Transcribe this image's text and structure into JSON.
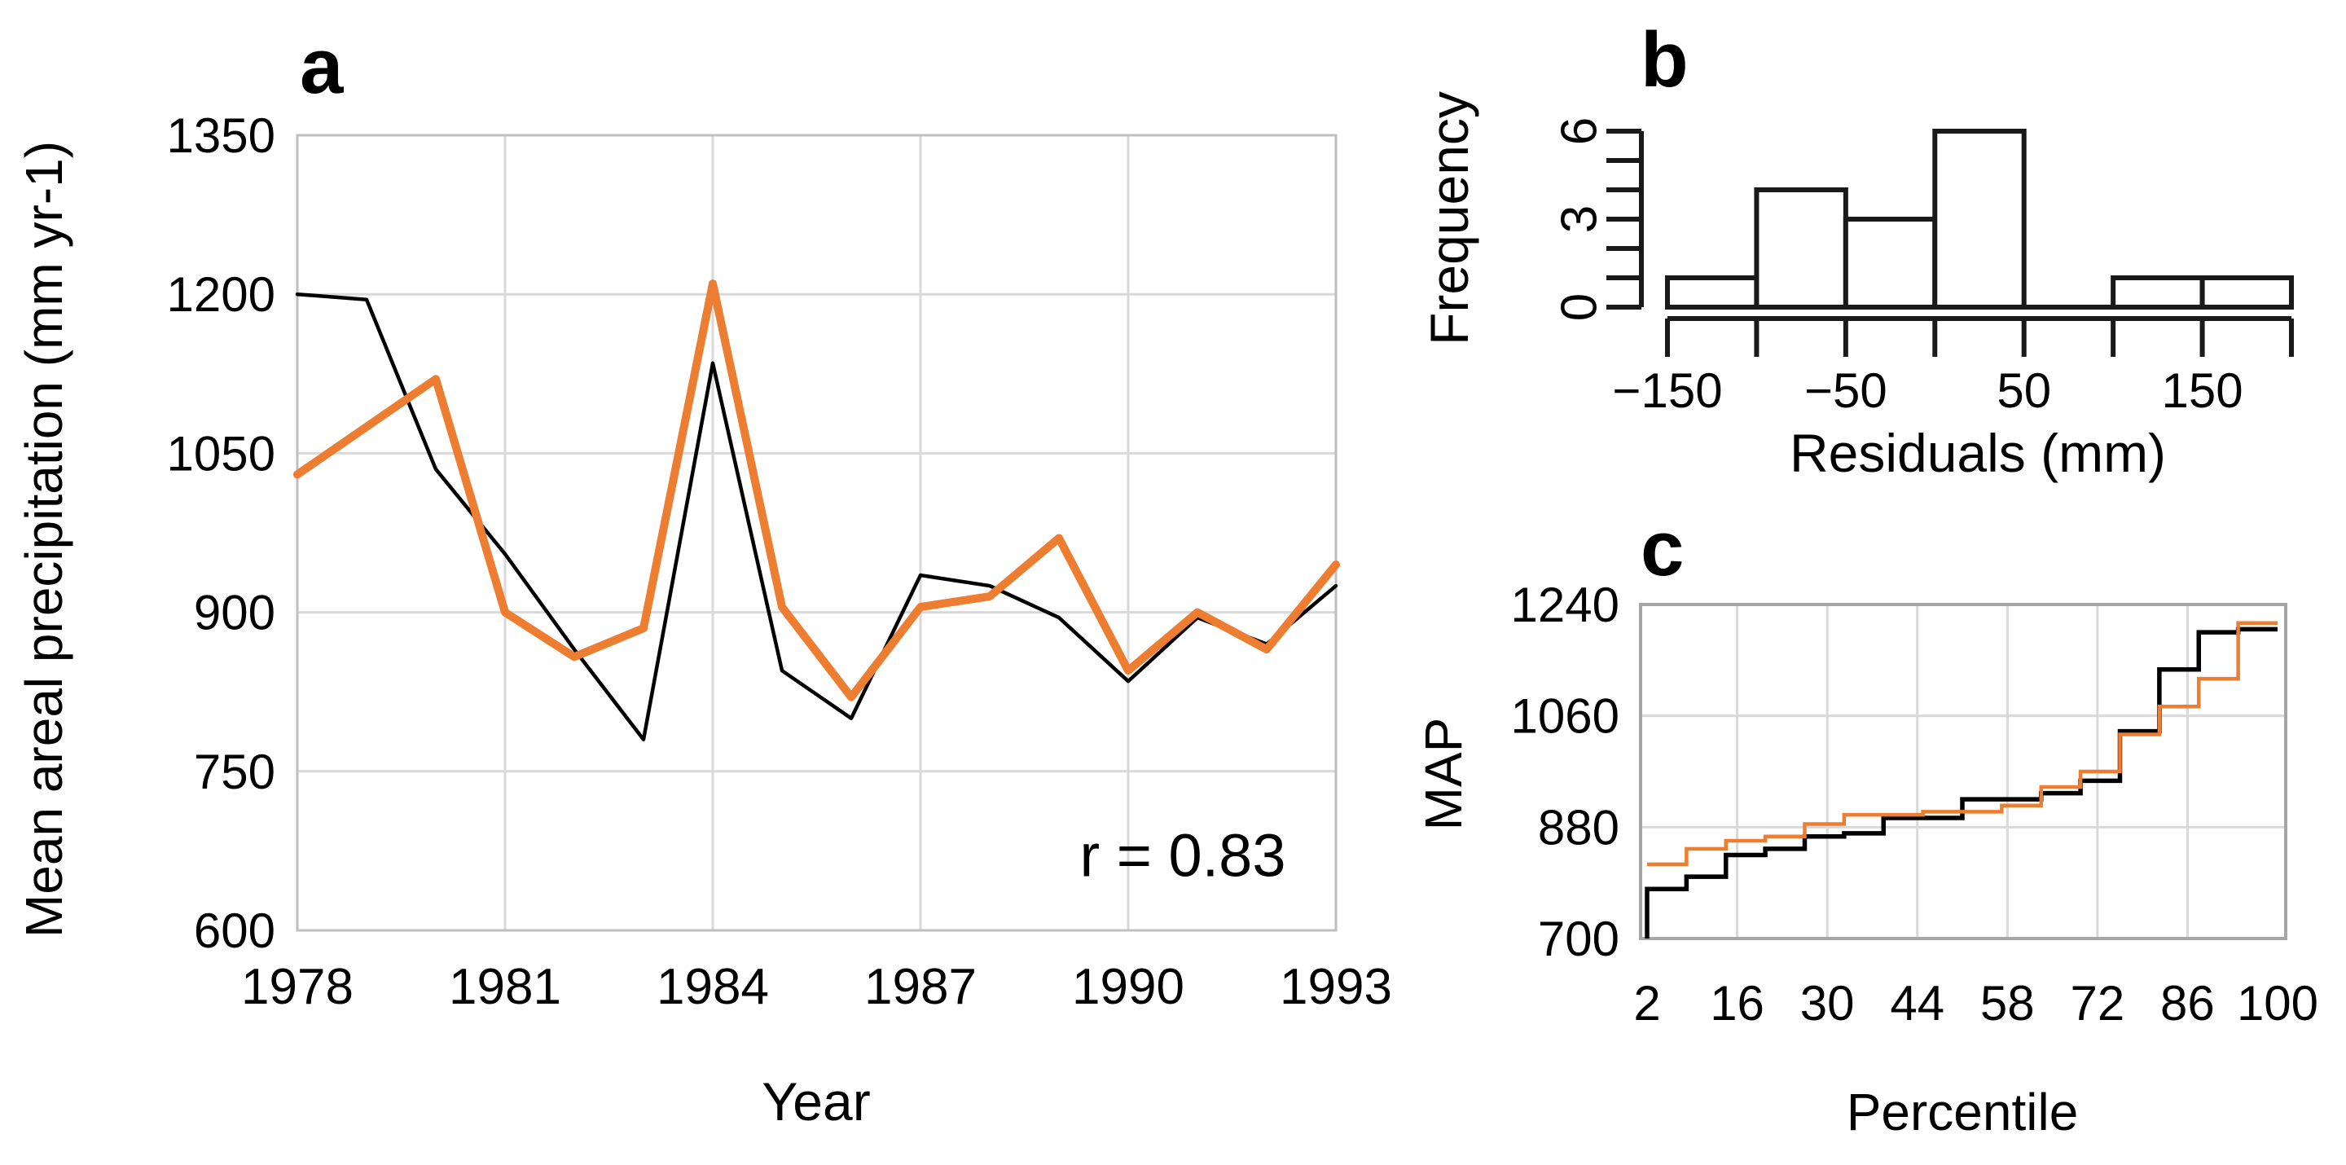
{
  "panels": {
    "a": {
      "letter": "a",
      "x_title": "Year",
      "y_title": "Mean areal precipitation (mm yr-1)",
      "annotation": "r = 0.83"
    },
    "b": {
      "letter": "b",
      "x_title": "Residuals (mm)",
      "y_title": "Frequency"
    },
    "c": {
      "letter": "c",
      "x_title": "Percentile",
      "y_title": "MAP"
    }
  },
  "colors": {
    "line_black": "#000000",
    "line_orange": "#ED7D31",
    "gridline": "#D9D9D9",
    "panel_border": "#BFBFBF",
    "panel_c_border": "#A6A6A6",
    "histogram_stroke": "#1A1A1A",
    "background": "#FFFFFF"
  },
  "chart_data": [
    {
      "id": "a",
      "type": "line",
      "title": "",
      "xlabel": "Year",
      "ylabel": "Mean areal precipitation (mm yr-1)",
      "annotation": "r = 0.83",
      "grid": true,
      "legend_position": "none",
      "x": [
        1978,
        1979,
        1980,
        1981,
        1982,
        1983,
        1984,
        1985,
        1986,
        1987,
        1988,
        1989,
        1990,
        1991,
        1992,
        1993
      ],
      "xticks": [
        1978,
        1981,
        1984,
        1987,
        1990,
        1993
      ],
      "yticks": [
        600,
        750,
        900,
        1050,
        1200,
        1350
      ],
      "ylim": [
        600,
        1350
      ],
      "xlim": [
        1978,
        1993
      ],
      "series": [
        {
          "name": "black",
          "color": "#000000",
          "values": [
            1200,
            1195,
            1035,
            955,
            865,
            780,
            1135,
            845,
            800,
            935,
            925,
            895,
            835,
            895,
            870,
            925
          ]
        },
        {
          "name": "orange",
          "color": "#ED7D31",
          "values": [
            1030,
            1075,
            1120,
            900,
            858,
            885,
            1210,
            905,
            820,
            905,
            915,
            970,
            845,
            900,
            865,
            945
          ]
        }
      ]
    },
    {
      "id": "b",
      "type": "bar",
      "subtype": "histogram",
      "title": "",
      "xlabel": "Residuals (mm)",
      "ylabel": "Frequency",
      "grid": false,
      "bin_edges": [
        -150,
        -100,
        -50,
        0,
        50,
        100,
        150,
        200
      ],
      "counts": [
        1,
        4,
        3,
        6,
        0,
        1,
        1
      ],
      "xtick_labels": [
        -150,
        -50,
        50,
        150
      ],
      "xticks_minor": [
        -150,
        -100,
        -50,
        0,
        50,
        100,
        150,
        200
      ],
      "ytick_labels": [
        0,
        3,
        6
      ],
      "yticks_minor": [
        0,
        1,
        2,
        3,
        4,
        5,
        6
      ],
      "ylim": [
        0,
        6
      ],
      "bar_fill": "#FFFFFF"
    },
    {
      "id": "c",
      "type": "line",
      "subtype": "step",
      "title": "",
      "xlabel": "Percentile",
      "ylabel": "MAP",
      "grid": true,
      "legend_position": "none",
      "xticks": [
        2,
        16,
        30,
        44,
        58,
        72,
        86,
        100
      ],
      "yticks": [
        700,
        880,
        1060,
        1240
      ],
      "ylim": [
        700,
        1240
      ],
      "xlim": [
        2,
        100
      ],
      "steps_per_series": 16,
      "series": [
        {
          "name": "black",
          "color": "#000000",
          "starts_at_axis_bottom": true,
          "values": [
            780,
            800,
            835,
            845,
            865,
            870,
            895,
            895,
            925,
            925,
            935,
            955,
            1035,
            1135,
            1195,
            1200
          ]
        },
        {
          "name": "orange",
          "color": "#ED7D31",
          "starts_at_axis_bottom": false,
          "values": [
            820,
            845,
            858,
            865,
            885,
            900,
            900,
            905,
            905,
            915,
            945,
            970,
            1030,
            1075,
            1120,
            1210
          ]
        }
      ]
    }
  ]
}
